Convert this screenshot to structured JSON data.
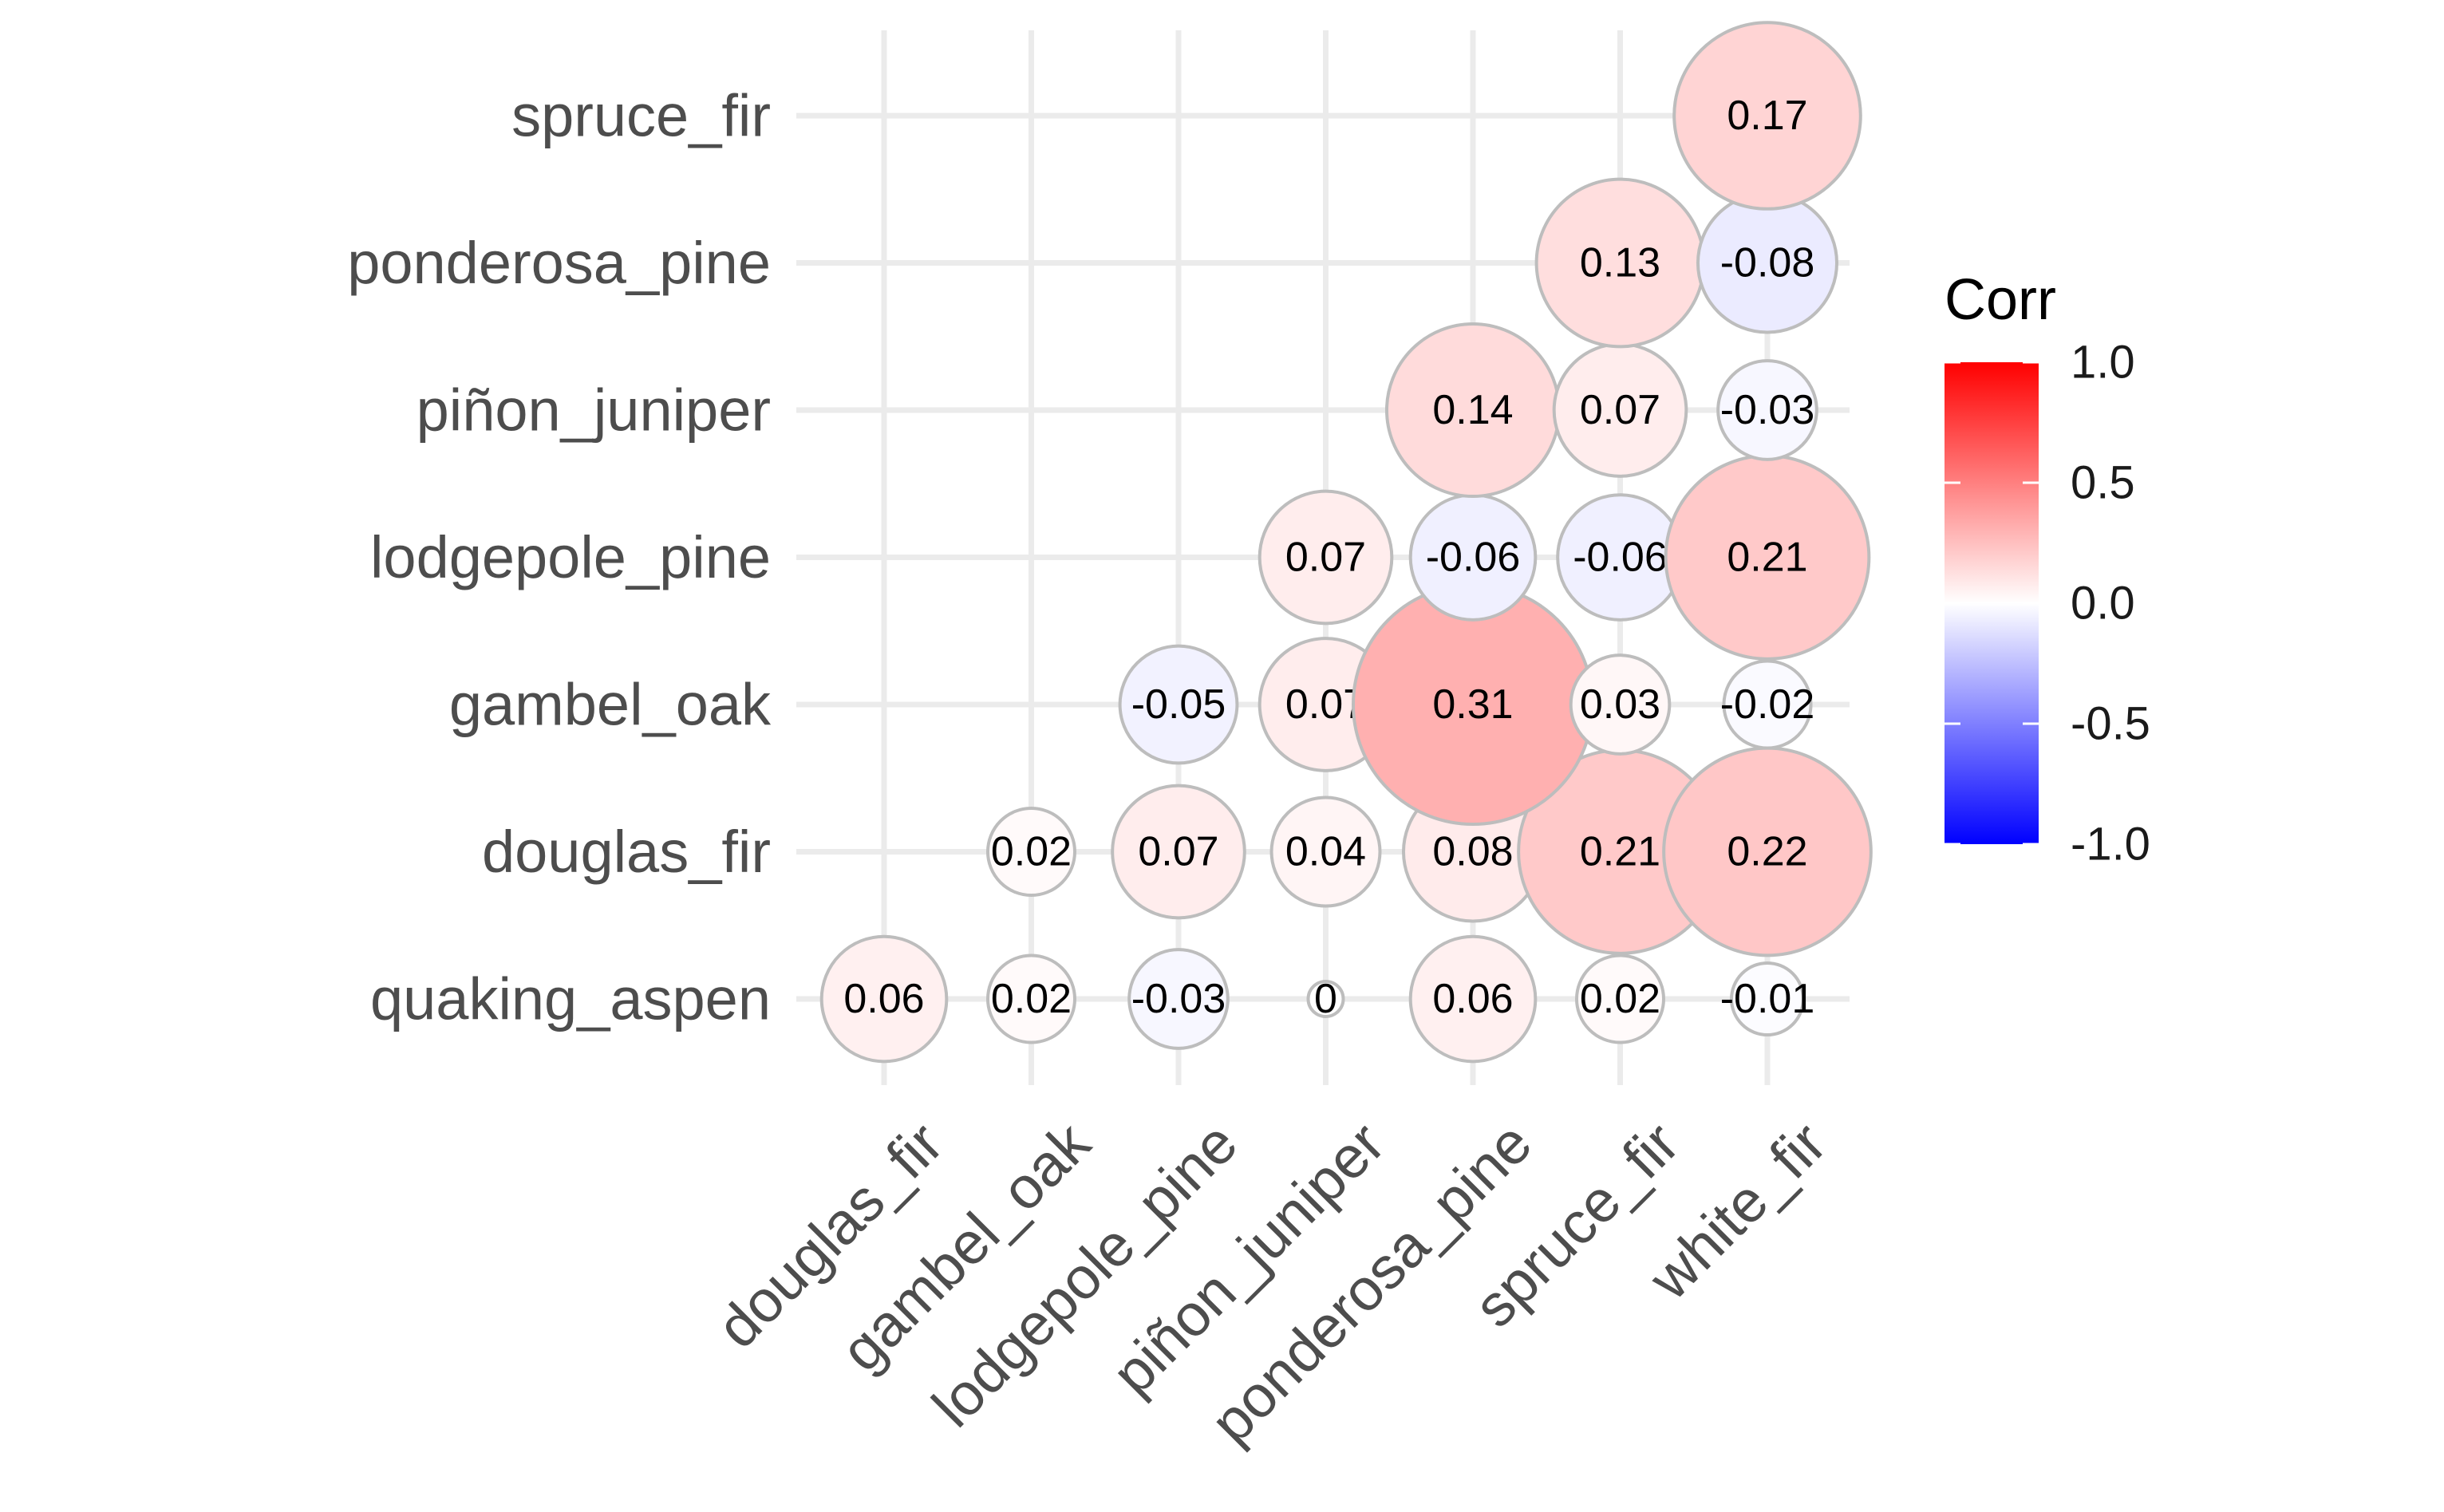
{
  "chart_data": {
    "type": "heatmap",
    "style": "lower-triangle correlation matrix with circles",
    "x_categories": [
      "douglas_fir",
      "gambel_oak",
      "lodgepole_pine",
      "piñon_juniper",
      "ponderosa_pine",
      "spruce_fir",
      "white_fir"
    ],
    "y_categories": [
      "quaking_aspen",
      "douglas_fir",
      "gambel_oak",
      "lodgepole_pine",
      "piñon_juniper",
      "ponderosa_pine",
      "spruce_fir"
    ],
    "cells": [
      {
        "x": "douglas_fir",
        "y": "quaking_aspen",
        "value": 0.06,
        "label": "0.06"
      },
      {
        "x": "gambel_oak",
        "y": "quaking_aspen",
        "value": 0.02,
        "label": "0.02"
      },
      {
        "x": "lodgepole_pine",
        "y": "quaking_aspen",
        "value": -0.03,
        "label": "-0.03"
      },
      {
        "x": "piñon_juniper",
        "y": "quaking_aspen",
        "value": 0.0,
        "label": "0"
      },
      {
        "x": "ponderosa_pine",
        "y": "quaking_aspen",
        "value": 0.06,
        "label": "0.06"
      },
      {
        "x": "spruce_fir",
        "y": "quaking_aspen",
        "value": 0.02,
        "label": "0.02"
      },
      {
        "x": "white_fir",
        "y": "quaking_aspen",
        "value": -0.01,
        "label": "-0.01"
      },
      {
        "x": "gambel_oak",
        "y": "douglas_fir",
        "value": 0.02,
        "label": "0.02"
      },
      {
        "x": "lodgepole_pine",
        "y": "douglas_fir",
        "value": 0.07,
        "label": "0.07"
      },
      {
        "x": "piñon_juniper",
        "y": "douglas_fir",
        "value": 0.04,
        "label": "0.04"
      },
      {
        "x": "ponderosa_pine",
        "y": "douglas_fir",
        "value": 0.08,
        "label": "0.08"
      },
      {
        "x": "spruce_fir",
        "y": "douglas_fir",
        "value": 0.21,
        "label": "0.21"
      },
      {
        "x": "white_fir",
        "y": "douglas_fir",
        "value": 0.22,
        "label": "0.22"
      },
      {
        "x": "lodgepole_pine",
        "y": "gambel_oak",
        "value": -0.05,
        "label": "-0.05"
      },
      {
        "x": "piñon_juniper",
        "y": "gambel_oak",
        "value": 0.07,
        "label": "0.07"
      },
      {
        "x": "ponderosa_pine",
        "y": "gambel_oak",
        "value": 0.31,
        "label": "0.31"
      },
      {
        "x": "spruce_fir",
        "y": "gambel_oak",
        "value": 0.03,
        "label": "0.03"
      },
      {
        "x": "white_fir",
        "y": "gambel_oak",
        "value": -0.02,
        "label": "-0.02"
      },
      {
        "x": "piñon_juniper",
        "y": "lodgepole_pine",
        "value": 0.07,
        "label": "0.07"
      },
      {
        "x": "ponderosa_pine",
        "y": "lodgepole_pine",
        "value": -0.06,
        "label": "-0.06"
      },
      {
        "x": "spruce_fir",
        "y": "lodgepole_pine",
        "value": -0.06,
        "label": "-0.06"
      },
      {
        "x": "white_fir",
        "y": "lodgepole_pine",
        "value": 0.21,
        "label": "0.21"
      },
      {
        "x": "ponderosa_pine",
        "y": "piñon_juniper",
        "value": 0.14,
        "label": "0.14"
      },
      {
        "x": "spruce_fir",
        "y": "piñon_juniper",
        "value": 0.07,
        "label": "0.07"
      },
      {
        "x": "white_fir",
        "y": "piñon_juniper",
        "value": -0.03,
        "label": "-0.03"
      },
      {
        "x": "spruce_fir",
        "y": "ponderosa_pine",
        "value": 0.13,
        "label": "0.13"
      },
      {
        "x": "white_fir",
        "y": "ponderosa_pine",
        "value": -0.08,
        "label": "-0.08"
      },
      {
        "x": "white_fir",
        "y": "spruce_fir",
        "value": 0.17,
        "label": "0.17"
      }
    ],
    "legend": {
      "title": "Corr",
      "position": "right",
      "min": -1.0,
      "max": 1.0,
      "ticks": [
        {
          "value": 1.0,
          "label": "1.0"
        },
        {
          "value": 0.5,
          "label": "0.5"
        },
        {
          "value": 0.0,
          "label": "0.0"
        },
        {
          "value": -0.5,
          "label": "-0.5"
        },
        {
          "value": -1.0,
          "label": "-1.0"
        }
      ],
      "colors": {
        "low": "#0000ff",
        "mid": "#ffffff",
        "high": "#ff0000"
      }
    },
    "grid": true
  }
}
